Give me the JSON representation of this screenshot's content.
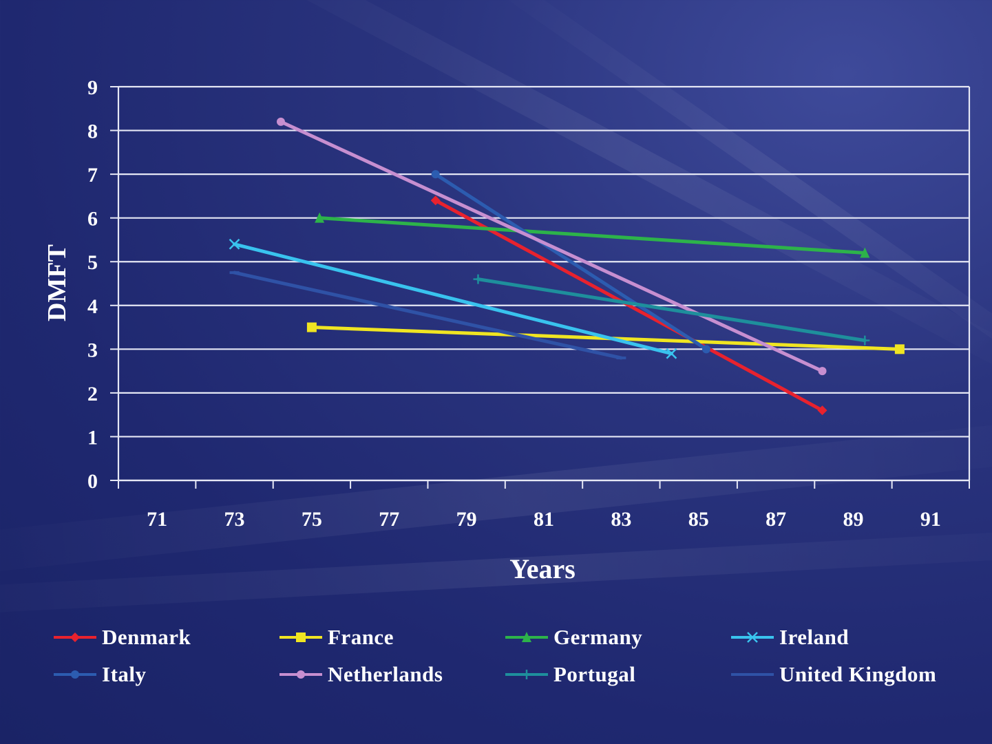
{
  "chart_data": {
    "type": "line",
    "title": "",
    "xlabel": "Years",
    "ylabel": "DMFT",
    "xlim": [
      70,
      92
    ],
    "ylim": [
      0,
      9
    ],
    "xticks": [
      "71",
      "73",
      "75",
      "77",
      "79",
      "81",
      "83",
      "85",
      "87",
      "89",
      "91"
    ],
    "yticks": [
      "0",
      "1",
      "2",
      "3",
      "4",
      "5",
      "6",
      "7",
      "8",
      "9"
    ],
    "grid": true,
    "legend_position": "bottom",
    "series": [
      {
        "name": "Denmark",
        "color": "#e8222e",
        "marker": "diamond",
        "points": [
          [
            78.2,
            6.4
          ],
          [
            88.2,
            1.6
          ]
        ]
      },
      {
        "name": "France",
        "color": "#f0e522",
        "marker": "square",
        "points": [
          [
            75.0,
            3.5
          ],
          [
            90.2,
            3.0
          ]
        ]
      },
      {
        "name": "Germany",
        "color": "#2db34a",
        "marker": "triangle",
        "points": [
          [
            75.2,
            6.0
          ],
          [
            89.3,
            5.2
          ]
        ]
      },
      {
        "name": "Ireland",
        "color": "#39c3ee",
        "marker": "x",
        "points": [
          [
            73.0,
            5.4
          ],
          [
            84.3,
            2.9
          ]
        ]
      },
      {
        "name": "Italy",
        "color": "#2c5cb0",
        "marker": "circle",
        "points": [
          [
            78.2,
            7.0
          ],
          [
            85.2,
            3.0
          ]
        ]
      },
      {
        "name": "Netherlands",
        "color": "#c78fd0",
        "marker": "circle",
        "points": [
          [
            74.2,
            8.2
          ],
          [
            88.2,
            2.5
          ]
        ]
      },
      {
        "name": "Portugal",
        "color": "#1e8f9c",
        "marker": "plus",
        "points": [
          [
            79.3,
            4.6
          ],
          [
            89.3,
            3.2
          ]
        ]
      },
      {
        "name": "United Kingdom",
        "color": "#2f52a6",
        "marker": "dash",
        "points": [
          [
            73.0,
            4.75
          ],
          [
            83.0,
            2.8
          ]
        ]
      }
    ]
  }
}
